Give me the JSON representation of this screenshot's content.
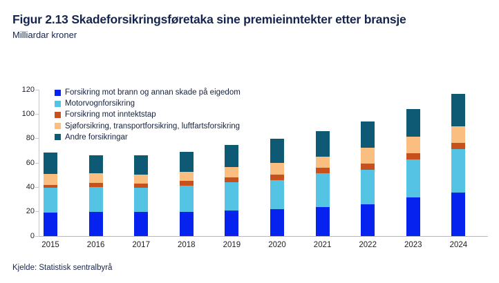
{
  "header": {
    "title": "Figur 2.13 Skadeforsikringsføretaka sine premieinntekter etter bransje",
    "subtitle": "Milliardar kroner"
  },
  "footer": {
    "source": "Kjelde: Statistisk sentralbyrå"
  },
  "colors": {
    "title_text": "#16254E",
    "axis_line": "#C0C0C6",
    "axis_label": "#1C1C24",
    "legend_text": "#14213D"
  },
  "chart_data": {
    "type": "bar",
    "stacked": true,
    "title": "Figur 2.13 Skadeforsikringsføretaka sine premieinntekter etter bransje",
    "ylabel": "Milliardar kroner",
    "xlabel": "",
    "categories": [
      "2015",
      "2016",
      "2017",
      "2018",
      "2019",
      "2020",
      "2021",
      "2022",
      "2023",
      "2024"
    ],
    "series": [
      {
        "name": "Forsikring mot brann og annan skade på eigedom",
        "color": "#0522EE",
        "values": [
          19,
          20,
          20,
          20,
          21,
          22,
          24,
          26,
          31.5,
          35.5
        ]
      },
      {
        "name": "Motorvognforsikring",
        "color": "#55C3E3",
        "values": [
          20.5,
          20,
          19.5,
          21.5,
          23,
          24,
          27.5,
          28.5,
          31.5,
          36
        ]
      },
      {
        "name": "Forsikring mot inntektstap",
        "color": "#C8501D",
        "values": [
          2.5,
          3.5,
          3.5,
          4,
          4,
          4.5,
          4.5,
          5,
          5,
          5
        ]
      },
      {
        "name": "Sjøforsikring, transportforsikring, luftfartsforsikring",
        "color": "#F9BE80",
        "values": [
          9,
          8,
          7.5,
          7,
          8.5,
          9.5,
          9,
          13,
          13.5,
          13.5
        ]
      },
      {
        "name": "Andre forsikringar",
        "color": "#0E5A75",
        "values": [
          17.5,
          14.5,
          16,
          16.5,
          18,
          20,
          21,
          21.5,
          22.5,
          26.5
        ]
      }
    ],
    "totals": [
      68.5,
      66,
      66.5,
      69,
      74.5,
      80,
      86,
      94,
      104,
      116.5
    ],
    "ylim": [
      0,
      120
    ],
    "yticks": [
      0,
      20,
      40,
      60,
      80,
      100,
      120
    ],
    "grid": false,
    "legend_position": "top-left-inside"
  }
}
